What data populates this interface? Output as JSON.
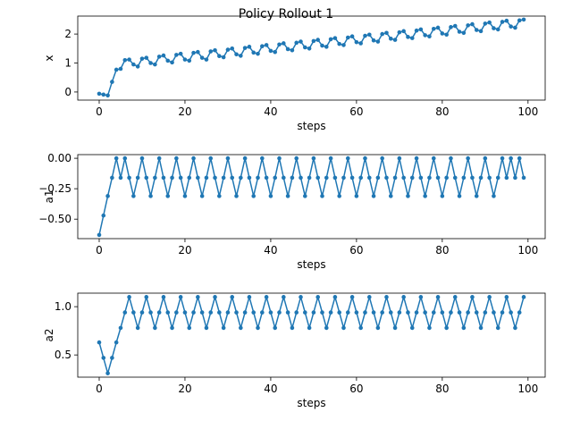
{
  "figure": {
    "title": "Policy Rollout 1"
  },
  "chart_data": [
    {
      "type": "line",
      "xlabel": "steps",
      "ylabel": "x",
      "xlim": [
        -5,
        104
      ],
      "ylim": [
        -0.28,
        2.62
      ],
      "xticks": [
        0,
        20,
        40,
        60,
        80,
        100
      ],
      "yticks": [
        0,
        1,
        2
      ],
      "grid": false,
      "color": "#1f77b4",
      "marker": "circle",
      "series": [
        {
          "x": [
            0,
            1,
            2,
            3,
            4,
            5,
            6,
            7,
            8,
            9,
            10,
            11,
            12,
            13,
            14,
            15,
            16,
            17,
            18,
            19,
            20,
            21,
            22,
            23,
            24,
            25,
            26,
            27,
            28,
            29,
            30,
            31,
            32,
            33,
            34,
            35,
            36,
            37,
            38,
            39,
            40,
            41,
            42,
            43,
            44,
            45,
            46,
            47,
            48,
            49,
            50,
            51,
            52,
            53,
            54,
            55,
            56,
            57,
            58,
            59,
            60,
            61,
            62,
            63,
            64,
            65,
            66,
            67,
            68,
            69,
            70,
            71,
            72,
            73,
            74,
            75,
            76,
            77,
            78,
            79,
            80,
            81,
            82,
            83,
            84,
            85,
            86,
            87,
            88,
            89,
            90,
            91,
            92,
            93,
            94,
            95,
            96,
            97,
            98,
            99
          ],
          "values": [
            -0.06,
            -0.09,
            -0.12,
            0.35,
            0.77,
            0.8,
            1.1,
            1.12,
            0.95,
            0.88,
            1.15,
            1.18,
            1.0,
            0.95,
            1.22,
            1.26,
            1.08,
            1.02,
            1.28,
            1.32,
            1.12,
            1.08,
            1.35,
            1.38,
            1.18,
            1.12,
            1.4,
            1.44,
            1.24,
            1.2,
            1.46,
            1.5,
            1.3,
            1.25,
            1.52,
            1.56,
            1.36,
            1.32,
            1.58,
            1.62,
            1.42,
            1.38,
            1.64,
            1.68,
            1.48,
            1.44,
            1.7,
            1.74,
            1.54,
            1.5,
            1.76,
            1.8,
            1.6,
            1.56,
            1.82,
            1.86,
            1.66,
            1.62,
            1.88,
            1.92,
            1.72,
            1.68,
            1.94,
            1.98,
            1.78,
            1.74,
            2.0,
            2.04,
            1.84,
            1.8,
            2.06,
            2.1,
            1.9,
            1.86,
            2.12,
            2.16,
            1.96,
            1.92,
            2.18,
            2.22,
            2.02,
            1.98,
            2.24,
            2.28,
            2.08,
            2.04,
            2.3,
            2.34,
            2.14,
            2.1,
            2.36,
            2.4,
            2.2,
            2.16,
            2.42,
            2.46,
            2.26,
            2.22,
            2.47,
            2.5
          ]
        }
      ]
    },
    {
      "type": "line",
      "xlabel": "steps",
      "ylabel": "a1",
      "xlim": [
        -5,
        104
      ],
      "ylim": [
        -0.66,
        0.03
      ],
      "xticks": [
        0,
        20,
        40,
        60,
        80,
        100
      ],
      "yticks": [
        -0.5,
        -0.25,
        0.0
      ],
      "ytick_labels": [
        "−0.50",
        "−0.25",
        "0.00"
      ],
      "grid": false,
      "color": "#1f77b4",
      "marker": "circle",
      "series": [
        {
          "x": [
            0,
            1,
            2,
            3,
            4,
            5,
            6,
            7,
            8,
            9,
            10,
            11,
            12,
            13,
            14,
            15,
            16,
            17,
            18,
            19,
            20,
            21,
            22,
            23,
            24,
            25,
            26,
            27,
            28,
            29,
            30,
            31,
            32,
            33,
            34,
            35,
            36,
            37,
            38,
            39,
            40,
            41,
            42,
            43,
            44,
            45,
            46,
            47,
            48,
            49,
            50,
            51,
            52,
            53,
            54,
            55,
            56,
            57,
            58,
            59,
            60,
            61,
            62,
            63,
            64,
            65,
            66,
            67,
            68,
            69,
            70,
            71,
            72,
            73,
            74,
            75,
            76,
            77,
            78,
            79,
            80,
            81,
            82,
            83,
            84,
            85,
            86,
            87,
            88,
            89,
            90,
            91,
            92,
            93,
            94,
            95,
            96,
            97,
            98,
            99
          ],
          "values": [
            -0.63,
            -0.47,
            -0.31,
            -0.16,
            0.0,
            -0.16,
            0.0,
            -0.16,
            -0.31,
            -0.16,
            0.0,
            -0.16,
            -0.31,
            -0.16,
            0.0,
            -0.16,
            -0.31,
            -0.16,
            0.0,
            -0.16,
            -0.31,
            -0.16,
            0.0,
            -0.16,
            -0.31,
            -0.16,
            0.0,
            -0.16,
            -0.31,
            -0.16,
            0.0,
            -0.16,
            -0.31,
            -0.16,
            0.0,
            -0.16,
            -0.31,
            -0.16,
            0.0,
            -0.16,
            -0.31,
            -0.16,
            0.0,
            -0.16,
            -0.31,
            -0.16,
            0.0,
            -0.16,
            -0.31,
            -0.16,
            0.0,
            -0.16,
            -0.31,
            -0.16,
            0.0,
            -0.16,
            -0.31,
            -0.16,
            0.0,
            -0.16,
            -0.31,
            -0.16,
            0.0,
            -0.16,
            -0.31,
            -0.16,
            0.0,
            -0.16,
            -0.31,
            -0.16,
            0.0,
            -0.16,
            -0.31,
            -0.16,
            0.0,
            -0.16,
            -0.31,
            -0.16,
            0.0,
            -0.16,
            -0.31,
            -0.16,
            0.0,
            -0.16,
            -0.31,
            -0.16,
            0.0,
            -0.16,
            -0.31,
            -0.16,
            0.0,
            -0.16,
            -0.31,
            -0.16,
            0.0,
            -0.16,
            0.0,
            -0.16,
            0.0,
            -0.16
          ]
        }
      ]
    },
    {
      "type": "line",
      "xlabel": "steps",
      "ylabel": "a2",
      "xlim": [
        -5,
        104
      ],
      "ylim": [
        0.27,
        1.14
      ],
      "xticks": [
        0,
        20,
        40,
        60,
        80,
        100
      ],
      "yticks": [
        0.5,
        1.0
      ],
      "ytick_labels": [
        "0.5",
        "1.0"
      ],
      "grid": false,
      "color": "#1f77b4",
      "marker": "circle",
      "series": [
        {
          "x": [
            0,
            1,
            2,
            3,
            4,
            5,
            6,
            7,
            8,
            9,
            10,
            11,
            12,
            13,
            14,
            15,
            16,
            17,
            18,
            19,
            20,
            21,
            22,
            23,
            24,
            25,
            26,
            27,
            28,
            29,
            30,
            31,
            32,
            33,
            34,
            35,
            36,
            37,
            38,
            39,
            40,
            41,
            42,
            43,
            44,
            45,
            46,
            47,
            48,
            49,
            50,
            51,
            52,
            53,
            54,
            55,
            56,
            57,
            58,
            59,
            60,
            61,
            62,
            63,
            64,
            65,
            66,
            67,
            68,
            69,
            70,
            71,
            72,
            73,
            74,
            75,
            76,
            77,
            78,
            79,
            80,
            81,
            82,
            83,
            84,
            85,
            86,
            87,
            88,
            89,
            90,
            91,
            92,
            93,
            94,
            95,
            96,
            97,
            98,
            99
          ],
          "values": [
            0.63,
            0.47,
            0.31,
            0.47,
            0.63,
            0.78,
            0.94,
            1.1,
            0.94,
            0.78,
            0.94,
            1.1,
            0.94,
            0.78,
            0.94,
            1.1,
            0.94,
            0.78,
            0.94,
            1.1,
            0.94,
            0.78,
            0.94,
            1.1,
            0.94,
            0.78,
            0.94,
            1.1,
            0.94,
            0.78,
            0.94,
            1.1,
            0.94,
            0.78,
            0.94,
            1.1,
            0.94,
            0.78,
            0.94,
            1.1,
            0.94,
            0.78,
            0.94,
            1.1,
            0.94,
            0.78,
            0.94,
            1.1,
            0.94,
            0.78,
            0.94,
            1.1,
            0.94,
            0.78,
            0.94,
            1.1,
            0.94,
            0.78,
            0.94,
            1.1,
            0.94,
            0.78,
            0.94,
            1.1,
            0.94,
            0.78,
            0.94,
            1.1,
            0.94,
            0.78,
            0.94,
            1.1,
            0.94,
            0.78,
            0.94,
            1.1,
            0.94,
            0.78,
            0.94,
            1.1,
            0.94,
            0.78,
            0.94,
            1.1,
            0.94,
            0.78,
            0.94,
            1.1,
            0.94,
            0.78,
            0.94,
            1.1,
            0.94,
            0.78,
            0.94,
            1.1,
            0.94,
            0.78,
            0.94,
            1.1
          ]
        }
      ]
    }
  ]
}
